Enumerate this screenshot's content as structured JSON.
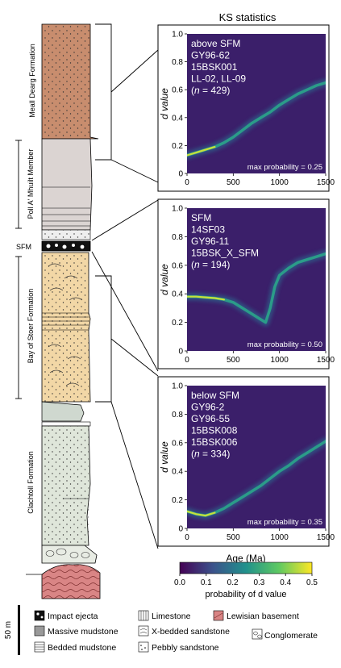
{
  "figure_title": "KS statistics",
  "formations": {
    "meall_dearg": "Meall Dearg Formation",
    "poll_a_mhuilt": "Poll A' Mhuilt Member",
    "sfm": "SFM",
    "bay_of_stoer": "Bay of Stoer Formation",
    "clachtoll": "Clachtoll Formation"
  },
  "panels": [
    {
      "lines": [
        "above SFM",
        "GY96-62",
        "15BSK001",
        "LL-02, LL-09"
      ],
      "n": "429",
      "max_probability": "max probability = 0.25",
      "curve": [
        [
          0,
          0.13
        ],
        [
          100,
          0.15
        ],
        [
          200,
          0.17
        ],
        [
          300,
          0.19
        ],
        [
          400,
          0.22
        ],
        [
          500,
          0.26
        ],
        [
          600,
          0.31
        ],
        [
          700,
          0.36
        ],
        [
          800,
          0.4
        ],
        [
          900,
          0.44
        ],
        [
          1000,
          0.49
        ],
        [
          1100,
          0.53
        ],
        [
          1200,
          0.57
        ],
        [
          1300,
          0.6
        ],
        [
          1400,
          0.63
        ],
        [
          1500,
          0.65
        ]
      ],
      "highlight": [
        [
          0,
          0.13
        ],
        [
          100,
          0.15
        ],
        [
          200,
          0.17
        ],
        [
          300,
          0.19
        ]
      ]
    },
    {
      "lines": [
        "SFM",
        "14SF03",
        "GY96-11",
        "15BSK_X_SFM"
      ],
      "n": "194",
      "max_probability": "max probability = 0.50",
      "curve": [
        [
          0,
          0.38
        ],
        [
          100,
          0.38
        ],
        [
          200,
          0.375
        ],
        [
          300,
          0.37
        ],
        [
          400,
          0.36
        ],
        [
          500,
          0.34
        ],
        [
          600,
          0.3
        ],
        [
          700,
          0.26
        ],
        [
          800,
          0.22
        ],
        [
          850,
          0.2
        ],
        [
          900,
          0.3
        ],
        [
          950,
          0.45
        ],
        [
          1000,
          0.53
        ],
        [
          1100,
          0.58
        ],
        [
          1200,
          0.62
        ],
        [
          1300,
          0.64
        ],
        [
          1400,
          0.66
        ],
        [
          1500,
          0.68
        ]
      ],
      "highlight": [
        [
          0,
          0.38
        ],
        [
          100,
          0.38
        ],
        [
          200,
          0.375
        ],
        [
          300,
          0.37
        ],
        [
          400,
          0.36
        ]
      ]
    },
    {
      "lines": [
        "below SFM",
        "GY96-2",
        "GY96-55",
        "15BSK008",
        "15BSK006"
      ],
      "n": "334",
      "max_probability": "max probability = 0.35",
      "curve": [
        [
          0,
          0.12
        ],
        [
          100,
          0.1
        ],
        [
          200,
          0.09
        ],
        [
          300,
          0.11
        ],
        [
          400,
          0.14
        ],
        [
          500,
          0.18
        ],
        [
          600,
          0.22
        ],
        [
          700,
          0.26
        ],
        [
          800,
          0.3
        ],
        [
          900,
          0.35
        ],
        [
          1000,
          0.4
        ],
        [
          1100,
          0.44
        ],
        [
          1200,
          0.49
        ],
        [
          1300,
          0.53
        ],
        [
          1400,
          0.57
        ],
        [
          1500,
          0.61
        ]
      ],
      "highlight": [
        [
          0,
          0.12
        ],
        [
          100,
          0.1
        ],
        [
          200,
          0.09
        ],
        [
          300,
          0.11
        ]
      ]
    }
  ],
  "axes": {
    "ylabel": "d value",
    "xlabel": "Age (Ma)",
    "x_ticks": [
      "0",
      "500",
      "1000",
      "1500"
    ],
    "y_ticks": [
      "0",
      "0.2",
      "0.4",
      "0.6",
      "0.8",
      "1.0"
    ],
    "x_range": [
      0,
      1500
    ],
    "y_range": [
      0,
      1.0
    ]
  },
  "colorbar": {
    "label": "probability of d value",
    "ticks": [
      "0.0",
      "0.1",
      "0.2",
      "0.3",
      "0.4",
      "0.5"
    ],
    "colors": [
      "#440154",
      "#3b528b",
      "#21918c",
      "#5ec962",
      "#fde725"
    ]
  },
  "scale_bar": "50 m",
  "legend": [
    {
      "label": "Impact ejecta",
      "icon": "impact-ejecta-swatch"
    },
    {
      "label": "Limestone",
      "icon": "limestone-swatch"
    },
    {
      "label": "Lewisian basement",
      "icon": "lewisian-swatch"
    },
    {
      "label": "Massive mudstone",
      "icon": "massive-mudstone-swatch"
    },
    {
      "label": "X-bedded sandstone",
      "icon": "x-bedded-swatch"
    },
    {
      "label": "Conglomerate",
      "icon": "conglomerate-swatch"
    },
    {
      "label": "Bedded mudstone",
      "icon": "bedded-mudstone-swatch"
    },
    {
      "label": "Pebbly sandstone",
      "icon": "pebbly-swatch"
    }
  ]
}
